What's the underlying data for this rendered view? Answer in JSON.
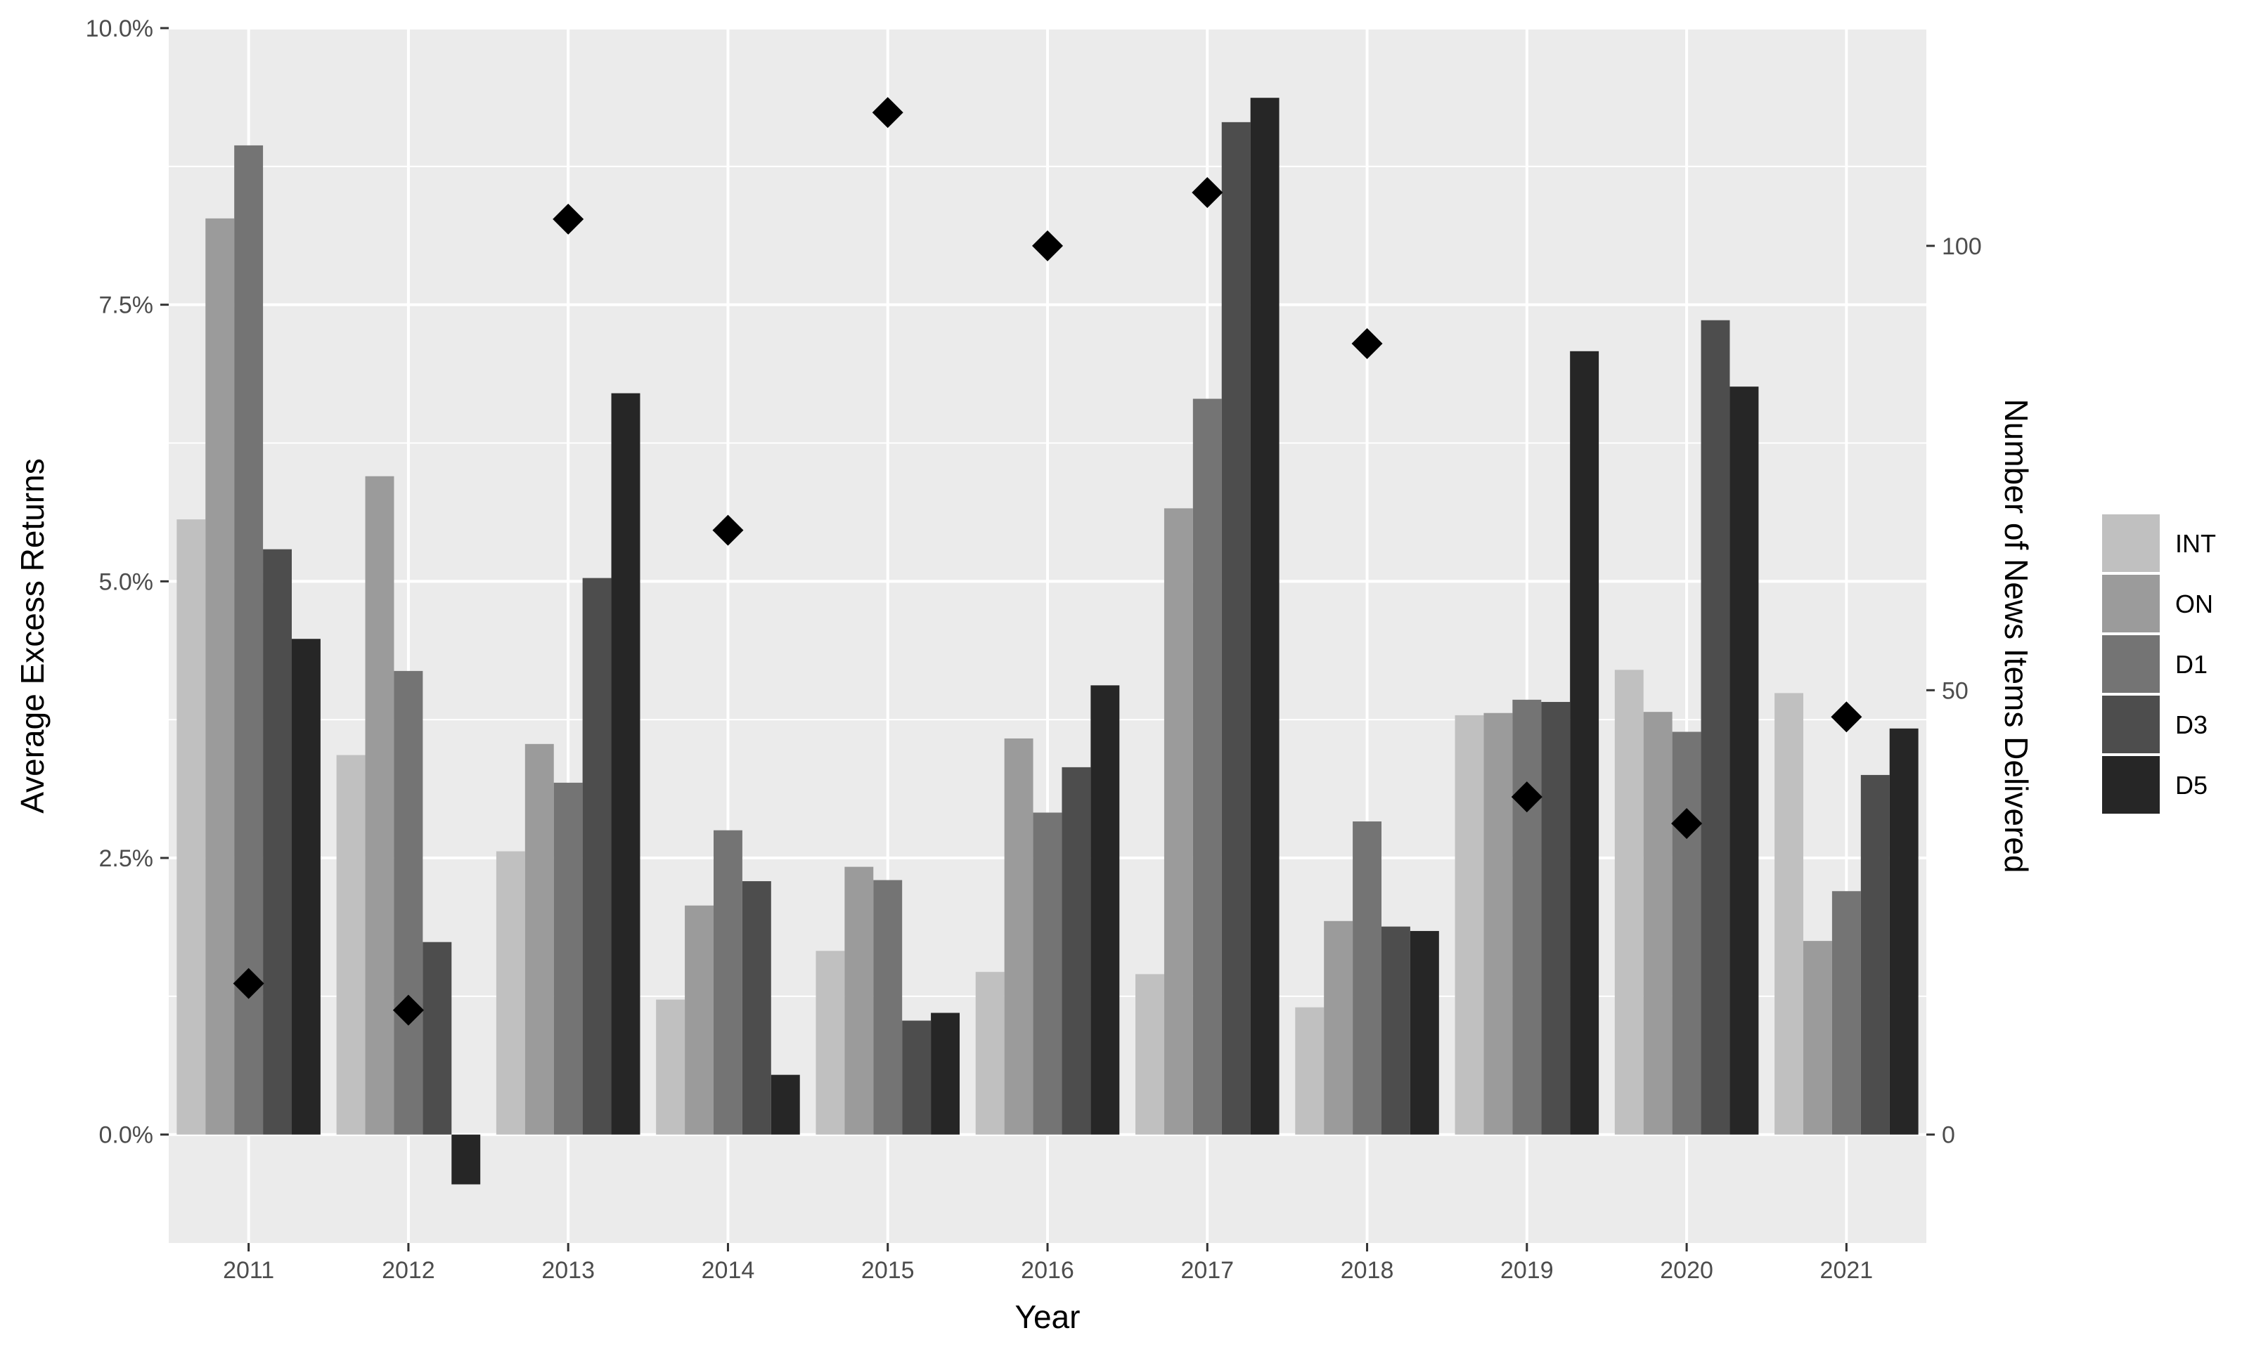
{
  "chart_data": {
    "type": "bar",
    "title": "",
    "xlabel": "Year",
    "ylabel": "Average Excess Returns",
    "y2label": "Number of News Items Delivered",
    "categories": [
      "2011",
      "2012",
      "2013",
      "2014",
      "2015",
      "2016",
      "2017",
      "2018",
      "2019",
      "2020",
      "2021"
    ],
    "ylim": [
      -0.98,
      10.0
    ],
    "yticks": [
      0.0,
      2.5,
      5.0,
      7.5,
      10.0
    ],
    "ytick_labels": [
      "0.0%",
      "2.5%",
      "5.0%",
      "7.5%",
      "10.0%"
    ],
    "y2lim": [
      -12.2,
      124.5
    ],
    "y2ticks": [
      0,
      50,
      100
    ],
    "y2tick_labels": [
      "0",
      "50",
      "100"
    ],
    "grid": true,
    "legend_position": "right",
    "series": [
      {
        "name": "INT",
        "color": "#c0c0c0",
        "values": [
          5.56,
          3.43,
          2.56,
          1.22,
          1.66,
          1.47,
          1.45,
          1.15,
          3.79,
          4.2,
          3.99
        ]
      },
      {
        "name": "ON",
        "color": "#9b9b9b",
        "values": [
          8.28,
          5.95,
          3.53,
          2.07,
          2.42,
          3.58,
          5.66,
          1.93,
          3.81,
          3.82,
          1.75
        ]
      },
      {
        "name": "D1",
        "color": "#747474",
        "values": [
          8.94,
          4.19,
          3.18,
          2.75,
          2.3,
          2.91,
          6.65,
          2.83,
          3.93,
          3.64,
          2.2
        ]
      },
      {
        "name": "D3",
        "color": "#4d4d4d",
        "values": [
          5.29,
          1.74,
          5.03,
          2.29,
          1.03,
          3.32,
          9.15,
          1.88,
          3.91,
          7.36,
          3.25
        ]
      },
      {
        "name": "D5",
        "color": "#262626",
        "values": [
          4.48,
          -0.45,
          6.7,
          0.54,
          1.1,
          4.06,
          9.37,
          1.84,
          7.08,
          6.76,
          3.67
        ]
      }
    ],
    "news_items": {
      "marker": "diamond",
      "color": "#000000",
      "values": [
        17,
        14,
        103,
        68,
        115,
        100,
        106,
        89,
        38,
        35,
        47
      ]
    }
  }
}
